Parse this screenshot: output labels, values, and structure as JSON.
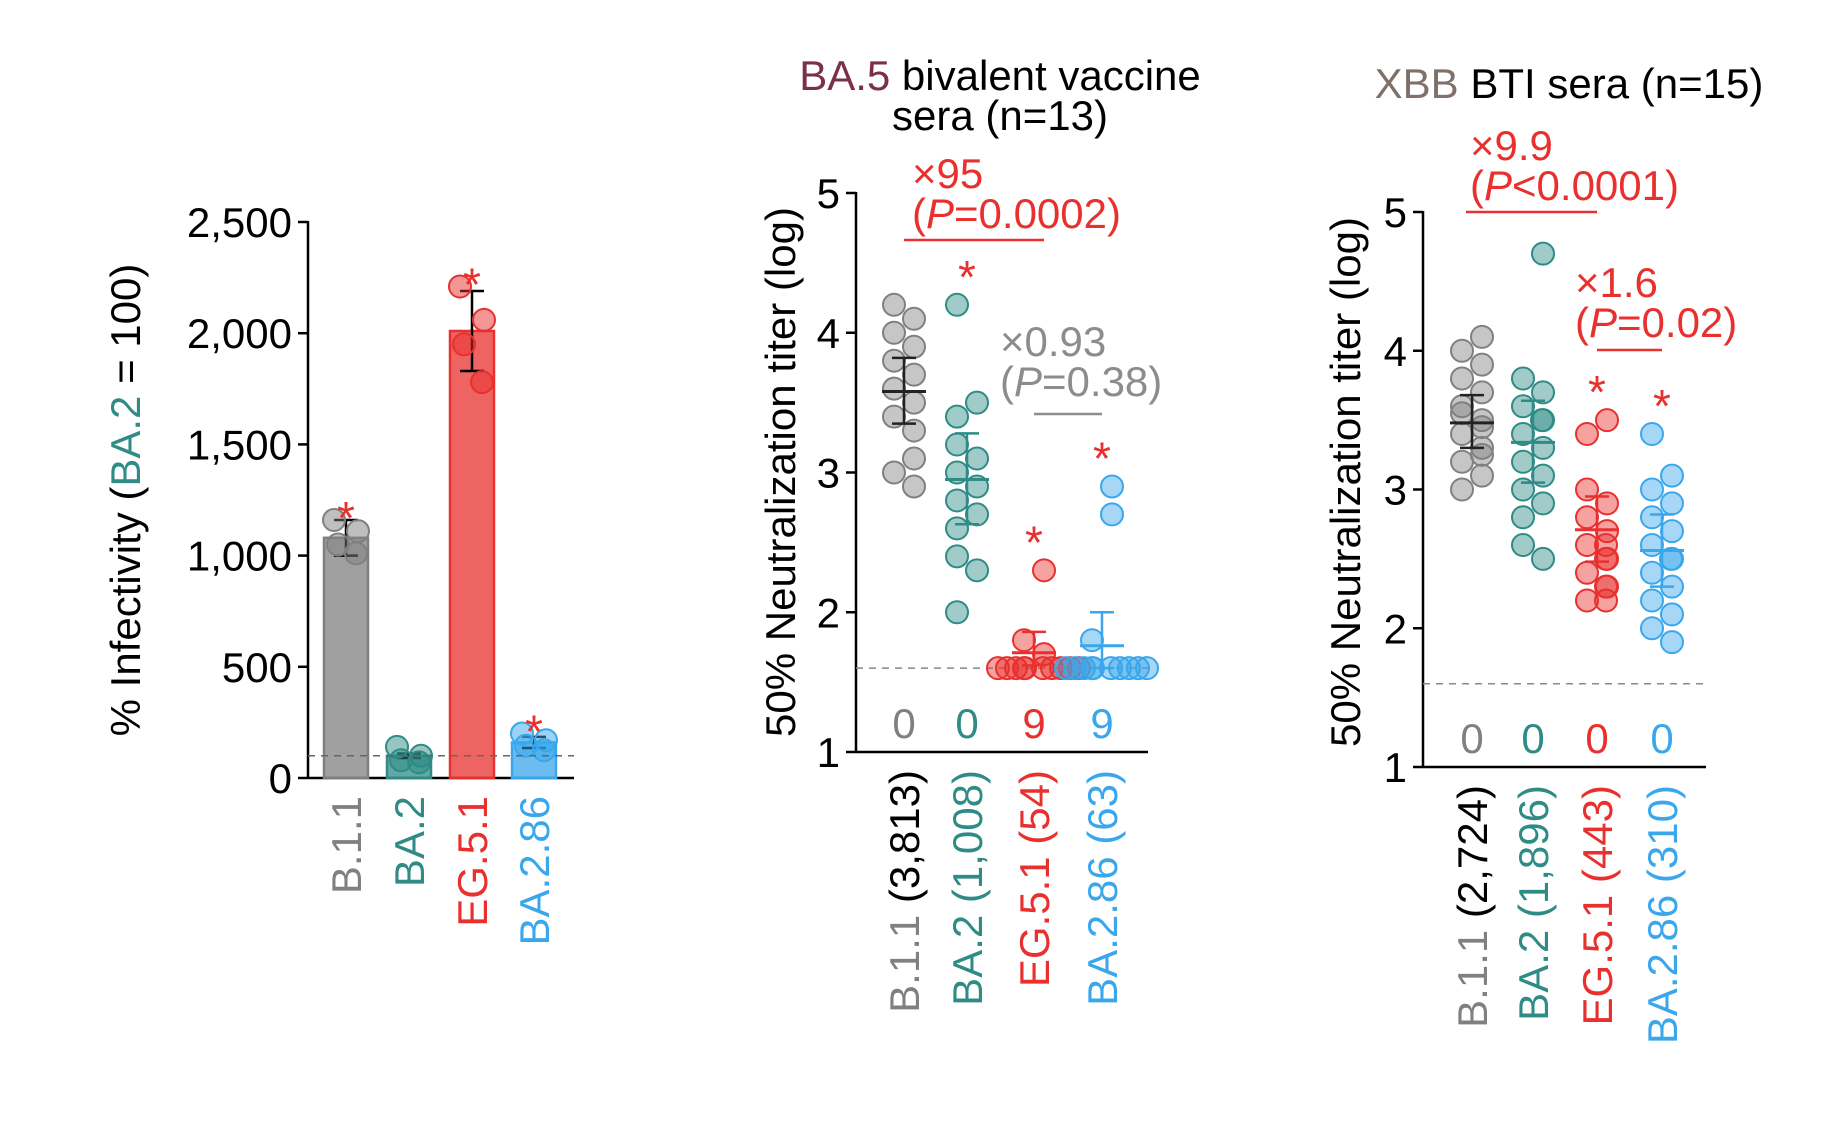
{
  "chart_data": [
    {
      "type": "bar",
      "ylabel_prefix": "% Infectivity (",
      "ylabel_highlight": "BA.2",
      "ylabel_suffix": " = 100)",
      "ylim": [
        0,
        2500
      ],
      "yticks": [
        0,
        500,
        1000,
        1500,
        2000,
        2500
      ],
      "ytick_labels": [
        "0",
        "500",
        "1,000",
        "1,500",
        "2,000",
        "2,500"
      ],
      "reference_line": 100,
      "categories": [
        "B.1.1",
        "BA.2",
        "EG.5.1",
        "BA.2.86"
      ],
      "colors": [
        "#808080",
        "#2e8b85",
        "#e8302e",
        "#3aa7ec"
      ],
      "values": [
        1080,
        100,
        2010,
        160
      ],
      "errors": [
        80,
        10,
        180,
        25
      ],
      "points": [
        [
          1160,
          1110,
          1050,
          1010
        ],
        [
          140,
          100,
          80,
          70
        ],
        [
          2210,
          2060,
          1950,
          1780
        ],
        [
          200,
          170,
          145,
          125
        ]
      ],
      "significant": [
        true,
        false,
        true,
        true
      ]
    },
    {
      "type": "scatter",
      "title_highlight": "BA.5",
      "title_rest": " bivalent vaccine",
      "title_line2": "sera (n=13)",
      "title_highlight_color": "#7a3048",
      "ylabel": "50% Neutralization titer (log)",
      "ylim": [
        1,
        5
      ],
      "yticks": [
        1,
        2,
        3,
        4,
        5
      ],
      "detection_limit": 1.6,
      "categories": [
        "B.1.1",
        "BA.2",
        "EG.5.1",
        "BA.2.86"
      ],
      "category_labels": [
        "B.1.1 (3,813)",
        "BA.2 (1,008)",
        "EG.5.1 (54)",
        "BA.2.86 (63)"
      ],
      "category_name": [
        "B.1.1 ",
        "BA.2 ",
        "EG.5.1 ",
        "BA.2.86 "
      ],
      "category_gmt": [
        "(3,813)",
        "(1,008)",
        "(54)",
        "(63)"
      ],
      "colors": [
        "#808080",
        "#2e8b85",
        "#e8302e",
        "#3aa7ec"
      ],
      "means": [
        3.58,
        2.95,
        1.71,
        1.76
      ],
      "ci": [
        [
          3.35,
          3.82
        ],
        [
          2.63,
          3.28
        ],
        [
          1.62,
          1.86
        ],
        [
          1.6,
          2.0
        ]
      ],
      "points": [
        [
          4.2,
          4.1,
          4.0,
          3.9,
          3.8,
          3.7,
          3.6,
          3.5,
          3.4,
          3.3,
          3.1,
          3.0,
          2.9
        ],
        [
          4.2,
          3.5,
          3.4,
          3.2,
          3.1,
          3.0,
          2.9,
          2.8,
          2.7,
          2.6,
          2.4,
          2.3,
          2.0
        ],
        [
          2.3,
          1.8,
          1.7,
          1.6,
          1.6,
          1.6,
          1.6,
          1.6,
          1.6,
          1.6,
          1.6,
          1.6,
          1.6
        ],
        [
          2.9,
          2.7,
          1.8,
          1.6,
          1.6,
          1.6,
          1.6,
          1.6,
          1.6,
          1.6,
          1.6,
          1.6,
          1.6
        ]
      ],
      "below_detection_counts": [
        "0",
        "0",
        "9",
        "9"
      ],
      "significant": [
        false,
        true,
        true,
        true
      ],
      "comparisons": [
        {
          "from": 0,
          "to": 2,
          "fold": "×95",
          "p_prefix": "(",
          "p_letter": "P",
          "p_value": "=0.0002)",
          "color": "#e8302e"
        },
        {
          "from": 2,
          "to": 3,
          "fold": "×0.93",
          "p_prefix": "(",
          "p_letter": "P",
          "p_value": "=0.38)",
          "color": "#8c8c8c"
        }
      ]
    },
    {
      "type": "scatter",
      "title_highlight": "XBB",
      "title_rest": " BTI sera (n=15)",
      "title_highlight_color": "#7f7169",
      "ylabel": "50% Neutralization titer (log)",
      "ylim": [
        1,
        5
      ],
      "yticks": [
        1,
        2,
        3,
        4,
        5
      ],
      "detection_limit": 1.6,
      "categories": [
        "B.1.1",
        "BA.2",
        "EG.5.1",
        "BA.2.86"
      ],
      "category_labels": [
        "B.1.1 (2,724)",
        "BA.2 (1,896)",
        "EG.5.1 (443)",
        "BA.2.86 (310)"
      ],
      "category_name": [
        "B.1.1 ",
        "BA.2 ",
        "EG.5.1 ",
        "BA.2.86 "
      ],
      "category_gmt": [
        "(2,724)",
        "(1,896)",
        "(443)",
        "(310)"
      ],
      "colors": [
        "#808080",
        "#2e8b85",
        "#e8302e",
        "#3aa7ec"
      ],
      "means": [
        3.48,
        3.34,
        2.71,
        2.56
      ],
      "ci": [
        [
          3.3,
          3.68
        ],
        [
          3.05,
          3.64
        ],
        [
          2.48,
          2.95
        ],
        [
          2.3,
          2.82
        ]
      ],
      "points": [
        [
          4.1,
          4.0,
          3.9,
          3.8,
          3.7,
          3.6,
          3.55,
          3.5,
          3.45,
          3.4,
          3.3,
          3.25,
          3.2,
          3.1,
          3.0
        ],
        [
          4.7,
          3.8,
          3.7,
          3.6,
          3.5,
          3.5,
          3.4,
          3.3,
          3.2,
          3.1,
          3.0,
          2.9,
          2.8,
          2.6,
          2.5
        ],
        [
          3.5,
          3.4,
          3.0,
          2.9,
          2.8,
          2.7,
          2.6,
          2.6,
          2.5,
          2.5,
          2.4,
          2.3,
          2.3,
          2.2,
          2.2
        ],
        [
          3.4,
          3.1,
          3.0,
          2.9,
          2.8,
          2.7,
          2.6,
          2.5,
          2.5,
          2.4,
          2.3,
          2.2,
          2.1,
          2.0,
          1.9
        ]
      ],
      "below_detection_counts": [
        "0",
        "0",
        "0",
        "0"
      ],
      "significant": [
        false,
        false,
        true,
        true
      ],
      "comparisons": [
        {
          "from": 0,
          "to": 2,
          "fold": "×9.9",
          "p_prefix": "(",
          "p_letter": "P",
          "p_value": "<0.0001)",
          "color": "#e8302e"
        },
        {
          "from": 2,
          "to": 3,
          "fold": "×1.6",
          "p_prefix": "(",
          "p_letter": "P",
          "p_value": "=0.02)",
          "color": "#e8302e"
        }
      ]
    }
  ]
}
